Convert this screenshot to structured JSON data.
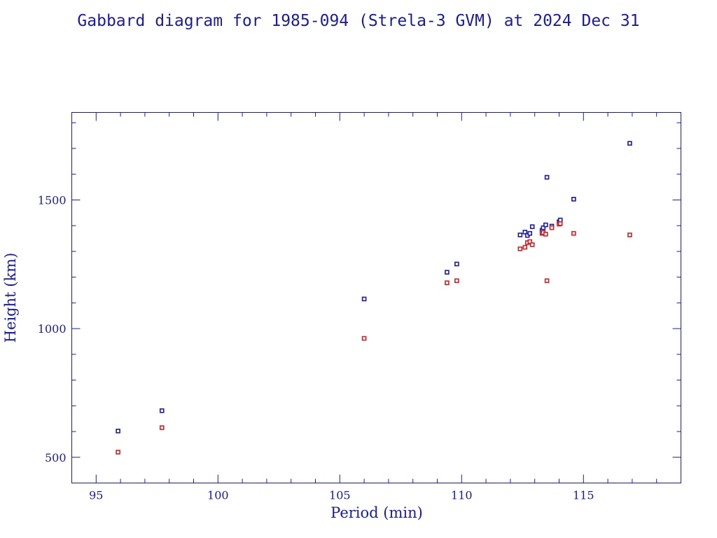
{
  "chart_data": {
    "type": "scatter",
    "title": "Gabbard diagram for 1985-094 (Strela-3 GVM) at 2024 Dec 31",
    "xlabel": "Period (min)",
    "ylabel": "Height (km)",
    "xlim": [
      94,
      119
    ],
    "ylim": [
      400,
      1840
    ],
    "x_ticks_major": [
      95,
      100,
      105,
      110,
      115
    ],
    "x_ticks_minor_step": 1,
    "y_ticks_major": [
      500,
      1000,
      1500
    ],
    "y_ticks_minor_step": 100,
    "grid": false,
    "colors": {
      "apogee": "#1a1aa6",
      "perigee": "#cc2222",
      "axis": "#1a1aa6"
    },
    "series": [
      {
        "color": "#1a1aa6",
        "points": [
          [
            95.9,
            602
          ],
          [
            97.7,
            681
          ],
          [
            106.0,
            1115
          ],
          [
            109.4,
            1219
          ],
          [
            109.8,
            1251
          ],
          [
            112.4,
            1364
          ],
          [
            112.6,
            1375
          ],
          [
            112.7,
            1362
          ],
          [
            112.8,
            1370
          ],
          [
            112.9,
            1396
          ],
          [
            113.3,
            1382
          ],
          [
            113.35,
            1392
          ],
          [
            113.45,
            1403
          ],
          [
            113.5,
            1588
          ],
          [
            113.7,
            1398
          ],
          [
            114.0,
            1415
          ],
          [
            114.05,
            1422
          ],
          [
            114.6,
            1503
          ],
          [
            116.9,
            1720
          ]
        ]
      },
      {
        "color": "#cc2222",
        "points": [
          [
            95.9,
            520
          ],
          [
            97.7,
            615
          ],
          [
            106.0,
            962
          ],
          [
            109.4,
            1178
          ],
          [
            109.8,
            1186
          ],
          [
            112.4,
            1310
          ],
          [
            112.6,
            1316
          ],
          [
            112.7,
            1334
          ],
          [
            112.8,
            1338
          ],
          [
            112.9,
            1326
          ],
          [
            113.3,
            1370
          ],
          [
            113.35,
            1373
          ],
          [
            113.45,
            1367
          ],
          [
            113.5,
            1186
          ],
          [
            113.7,
            1392
          ],
          [
            114.0,
            1406
          ],
          [
            114.05,
            1408
          ],
          [
            114.6,
            1370
          ],
          [
            116.9,
            1364
          ]
        ]
      }
    ]
  }
}
